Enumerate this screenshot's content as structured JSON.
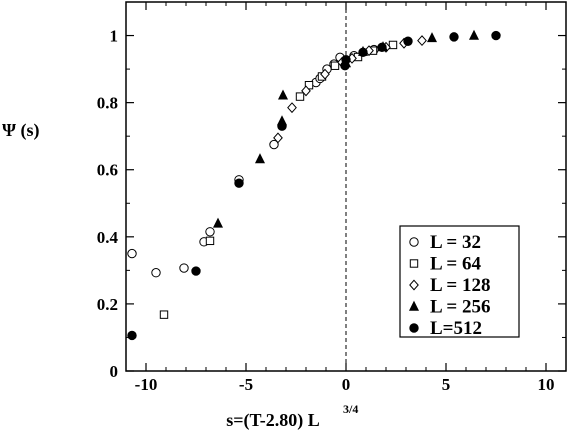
{
  "chart_data": {
    "type": "scatter",
    "xlabel": "s=(T-2.80) L",
    "xlabel_superscript": "3/4",
    "ylabel": "Ψ (s)",
    "xlim": [
      -11,
      11
    ],
    "ylim": [
      0,
      1.1
    ],
    "x_ticks": [
      -10,
      -5,
      0,
      5,
      10
    ],
    "x_tick_labels": [
      "-10",
      "-5",
      "0",
      "5",
      "10"
    ],
    "y_ticks": [
      0,
      0.2,
      0.4,
      0.6,
      0.8,
      1
    ],
    "y_tick_labels": [
      "0",
      "0.2",
      "0.4",
      "0.6",
      "0.8",
      "1"
    ],
    "reference_line": {
      "x": 0,
      "style": "dashed"
    },
    "legend_position": "bottom-right",
    "series": [
      {
        "name": "L = 32",
        "marker": "open-circle",
        "points": [
          [
            -10.7,
            0.35
          ],
          [
            -9.5,
            0.293
          ],
          [
            -8.1,
            0.307
          ],
          [
            -7.1,
            0.385
          ],
          [
            -6.8,
            0.415
          ],
          [
            -5.35,
            0.57
          ],
          [
            -3.6,
            0.675
          ],
          [
            -1.5,
            0.86
          ],
          [
            -1.3,
            0.872
          ],
          [
            -0.95,
            0.9
          ],
          [
            -0.6,
            0.915
          ],
          [
            -0.3,
            0.935
          ],
          [
            0.4,
            0.94
          ],
          [
            1.4,
            0.958
          ]
        ]
      },
      {
        "name": "L = 64",
        "marker": "open-square",
        "points": [
          [
            -9.1,
            0.168
          ],
          [
            -6.8,
            0.388
          ],
          [
            -2.3,
            0.818
          ],
          [
            -1.85,
            0.852
          ],
          [
            -1.2,
            0.878
          ],
          [
            -0.55,
            0.91
          ],
          [
            0.6,
            0.936
          ],
          [
            1.35,
            0.955
          ],
          [
            2.35,
            0.972
          ]
        ]
      },
      {
        "name": "L = 128",
        "marker": "open-diamond",
        "points": [
          [
            -3.4,
            0.695
          ],
          [
            -2.7,
            0.785
          ],
          [
            -2.0,
            0.835
          ],
          [
            -1.05,
            0.885
          ],
          [
            -0.2,
            0.92
          ],
          [
            0.3,
            0.932
          ],
          [
            1.15,
            0.955
          ],
          [
            2.0,
            0.965
          ],
          [
            2.9,
            0.977
          ],
          [
            3.8,
            0.985
          ]
        ]
      },
      {
        "name": "L = 256",
        "marker": "filled-triangle",
        "points": [
          [
            -6.4,
            0.44
          ],
          [
            -4.3,
            0.632
          ],
          [
            -3.2,
            0.745
          ],
          [
            -3.15,
            0.822
          ],
          [
            0.0,
            0.918
          ],
          [
            0.85,
            0.952
          ],
          [
            1.85,
            0.966
          ],
          [
            4.3,
            0.993
          ],
          [
            6.4,
            1.0
          ]
        ]
      },
      {
        "name": "L=512",
        "marker": "filled-circle",
        "points": [
          [
            -10.7,
            0.106
          ],
          [
            -7.5,
            0.298
          ],
          [
            -5.35,
            0.56
          ],
          [
            -3.2,
            0.73
          ],
          [
            -0.05,
            0.91
          ],
          [
            0.0,
            0.928
          ],
          [
            0.85,
            0.95
          ],
          [
            1.8,
            0.965
          ],
          [
            3.1,
            0.983
          ],
          [
            5.4,
            0.996
          ],
          [
            7.5,
            1.0
          ]
        ]
      }
    ]
  }
}
